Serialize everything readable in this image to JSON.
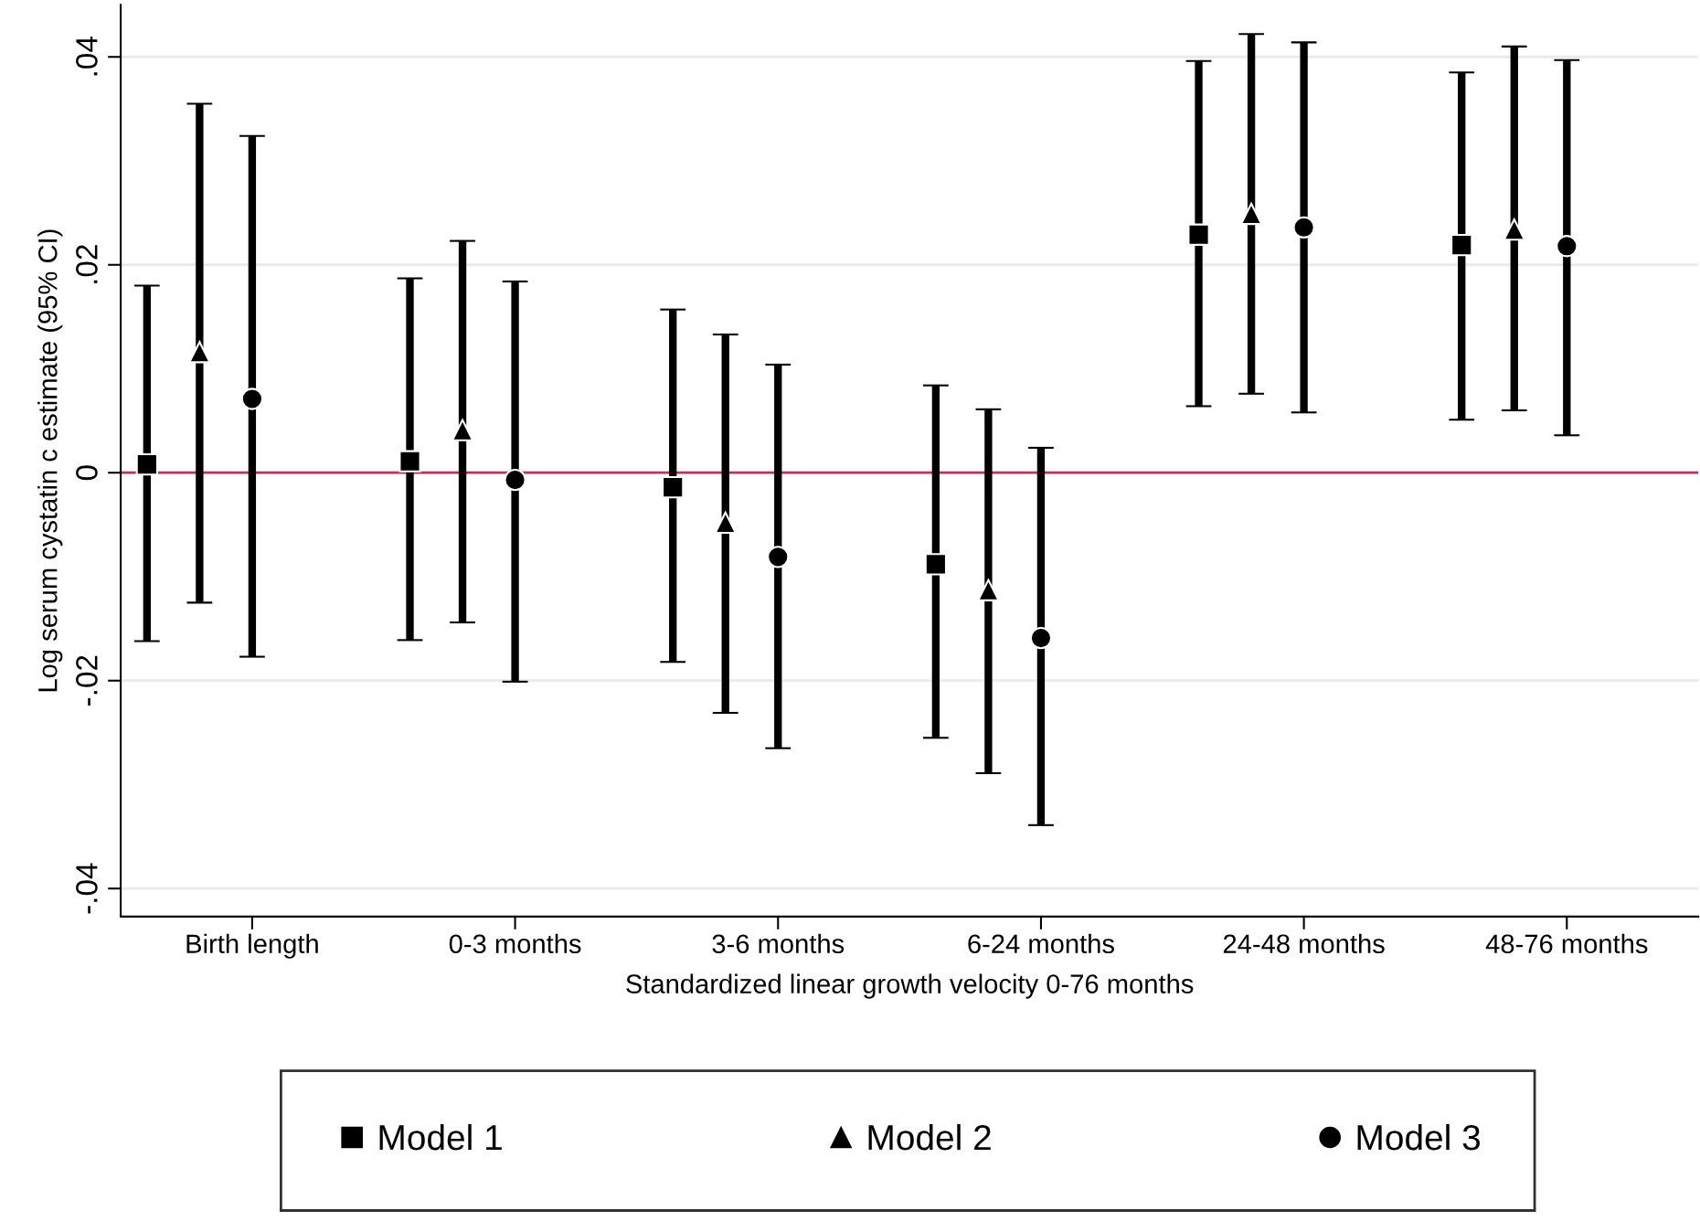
{
  "chart_data": {
    "type": "scatter",
    "xlabel": "Standardized linear growth velocity 0-76 months",
    "ylabel": "Log serum cystatin c estimate (95% CI)",
    "categories": [
      "Birth length",
      "0-3 months",
      "3-6 months",
      "6-24 months",
      "24-48 months",
      "48-76 months"
    ],
    "series": [
      {
        "name": "Model 1",
        "color": "#000000",
        "marker": "square",
        "values": [
          0.0008,
          0.0011,
          -0.0014,
          -0.0088,
          0.0229,
          0.0219
        ],
        "errors": [
          [
            -0.0162,
            0.018
          ],
          [
            -0.0161,
            0.0187
          ],
          [
            -0.0182,
            0.0157
          ],
          [
            -0.0255,
            0.0084
          ],
          [
            0.0064,
            0.0396
          ],
          [
            0.0051,
            0.0385
          ]
        ]
      },
      {
        "name": "Model 2",
        "color": "#000000",
        "marker": "triangle",
        "values": [
          0.0116,
          0.0041,
          -0.0048,
          -0.0113,
          0.0249,
          0.0234
        ],
        "errors": [
          [
            -0.0125,
            0.0355
          ],
          [
            -0.0144,
            0.0223
          ],
          [
            -0.0231,
            0.0133
          ],
          [
            -0.0289,
            0.0061
          ],
          [
            0.0076,
            0.0422
          ],
          [
            0.006,
            0.041
          ]
        ]
      },
      {
        "name": "Model 3",
        "color": "#000000",
        "marker": "circle",
        "values": [
          0.0071,
          -0.0007,
          -0.0081,
          -0.0159,
          0.0236,
          0.0218
        ],
        "errors": [
          [
            -0.0177,
            0.0324
          ],
          [
            -0.0201,
            0.0184
          ],
          [
            -0.0265,
            0.0104
          ],
          [
            -0.0339,
            0.0024
          ],
          [
            0.0058,
            0.0414
          ],
          [
            0.0036,
            0.0397
          ]
        ]
      }
    ],
    "ylim": [
      -0.0427,
      0.045
    ],
    "yticks": [
      {
        "value": -0.04,
        "label": "-.04"
      },
      {
        "value": -0.02,
        "label": "-.02"
      },
      {
        "value": 0,
        "label": "0"
      },
      {
        "value": 0.02,
        "label": ".02"
      },
      {
        "value": 0.04,
        "label": ".04"
      }
    ],
    "ref_lines": [
      {
        "axis": "y",
        "value": 0,
        "color": "#c0325a"
      }
    ],
    "grid": "y",
    "legend": "bottom"
  }
}
